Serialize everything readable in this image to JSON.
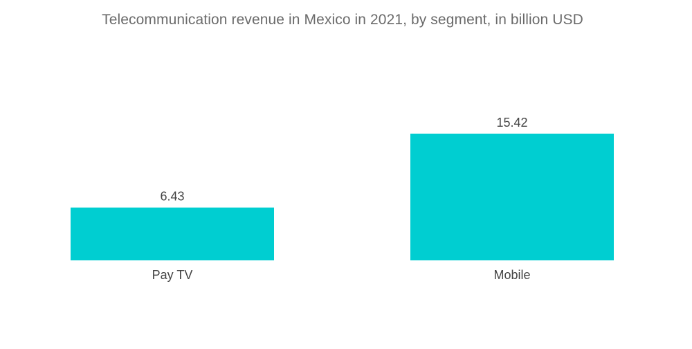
{
  "chart_data": {
    "type": "bar",
    "title": "Telecommunication revenue in Mexico in 2021, by segment, in billion USD",
    "categories": [
      "Pay TV",
      "Mobile"
    ],
    "values": [
      6.43,
      15.42
    ],
    "value_labels": [
      "6.43",
      "15.42"
    ],
    "xlabel": "",
    "ylabel": "",
    "ylim": [
      0,
      15.42
    ],
    "grid": false,
    "legend": "none",
    "colors": {
      "bar": "#00CED1",
      "text": "#444444",
      "title": "#6b6b6b"
    }
  }
}
